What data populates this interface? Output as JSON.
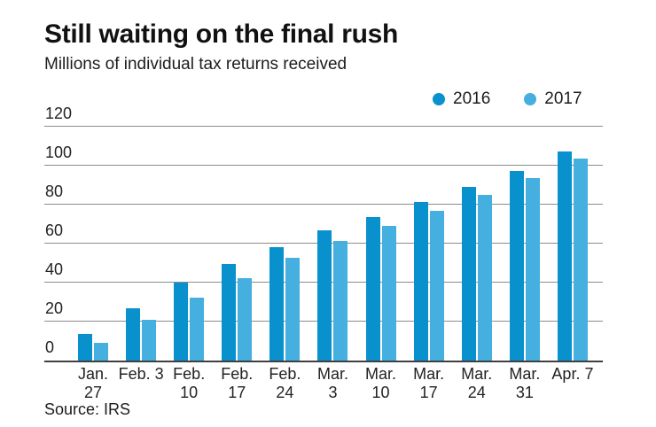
{
  "header": {
    "title": "Still waiting on the final rush",
    "subtitle": "Millions of individual tax returns received"
  },
  "source_note": "Source: IRS",
  "colors": {
    "series_2016": "#0891cd",
    "series_2017": "#45afdf",
    "gridline": "#8c8c8c",
    "axis_line": "#3f3f3f",
    "text": "#1c1c1c"
  },
  "chart_data": {
    "type": "bar",
    "title": "Still waiting on the final rush",
    "subtitle": "Millions of individual tax returns received",
    "xlabel": "",
    "ylabel": "",
    "categories": [
      "Jan. 27",
      "Feb. 3",
      "Feb. 10",
      "Feb. 17",
      "Feb. 24",
      "Mar. 3",
      "Mar. 10",
      "Mar. 17",
      "Mar. 24",
      "Mar. 31",
      "Apr. 7"
    ],
    "category_lines": [
      [
        "Jan.",
        "27"
      ],
      [
        "Feb. 3"
      ],
      [
        "Feb.",
        "10"
      ],
      [
        "Feb.",
        "17"
      ],
      [
        "Feb.",
        "24"
      ],
      [
        "Mar.",
        "3"
      ],
      [
        "Mar.",
        "10"
      ],
      [
        "Mar.",
        "17"
      ],
      [
        "Mar.",
        "24"
      ],
      [
        "Mar.",
        "31"
      ],
      [
        "Apr. 7"
      ]
    ],
    "series": [
      {
        "name": "2016",
        "color": "#0891cd",
        "values": [
          13.5,
          26.7,
          39.9,
          49.6,
          58.3,
          66.9,
          73.7,
          81.4,
          89.0,
          97.4,
          107.1
        ]
      },
      {
        "name": "2017",
        "color": "#45afdf",
        "values": [
          9.2,
          20.7,
          32.4,
          42.5,
          52.9,
          61.5,
          69.0,
          76.7,
          85.0,
          93.6,
          103.6
        ]
      }
    ],
    "yticks": [
      0,
      20,
      40,
      60,
      80,
      100,
      120
    ],
    "ylim": [
      0,
      120
    ],
    "grid": true,
    "legend_position": "top-right",
    "source": "Source: IRS"
  }
}
